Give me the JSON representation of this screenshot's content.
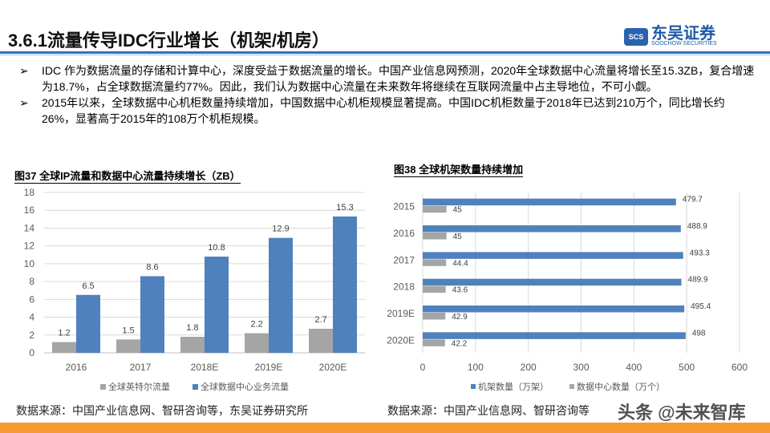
{
  "header": {
    "title": "3.6.1流量传导IDC行业增长（机架/机房）",
    "logo_cn": "东吴证券",
    "logo_en": "SOOCHOW SECURITIES",
    "logo_mark": "SCS"
  },
  "bullets": [
    "IDC 作为数据流量的存储和计算中心，深度受益于数据流量的增长。中国产业信息网预测，2020年全球数据中心流量将增长至15.3ZB，复合增速为18.7%，占全球数据流量约77%。因此，我们认为数据中心流量在未来数年将继续在互联网流量中占主导地位，不可小觑。",
    "2015年以来，全球数据中心机柜数量持续增加，中国数据中心机柜规模显著提高。中国IDC机柜数量于2018年已达到210万个，同比增长约26%，显著高于2015年的108万个机柜规模。"
  ],
  "bullet_icon": "arrow-right-icon",
  "colors": {
    "blue": "#4f81bd",
    "gray": "#a5a5a5",
    "accent": "#2e74b5",
    "footer": "#f79a33"
  },
  "chart_data": [
    {
      "type": "bar",
      "title": "图37 全球IP流量和数据中心流量持续增长（ZB）",
      "categories": [
        "2016",
        "2017",
        "2018E",
        "2019E",
        "2020E"
      ],
      "series": [
        {
          "name": "全球英特尔流量",
          "color": "#a5a5a5",
          "values": [
            1.2,
            1.5,
            1.8,
            2.2,
            2.7
          ]
        },
        {
          "name": "全球数据中心业务流量",
          "color": "#4f81bd",
          "values": [
            6.5,
            8.6,
            10.8,
            12.9,
            15.3
          ]
        }
      ],
      "ylim": [
        0,
        18
      ],
      "yticks": [
        0,
        2,
        4,
        6,
        8,
        10,
        12,
        14,
        16,
        18
      ],
      "grid": true,
      "legend": "bottom"
    },
    {
      "type": "bar",
      "orientation": "horizontal",
      "title": "图38 全球机架数量持续增加",
      "categories": [
        "2015",
        "2016",
        "2017",
        "2018",
        "2019E",
        "2020E"
      ],
      "series": [
        {
          "name": "机架数量（万架）",
          "color": "#4f81bd",
          "values": [
            479.7,
            488.9,
            493.3,
            489.9,
            495.4,
            498
          ]
        },
        {
          "name": "数据中心数量（万个）",
          "color": "#a5a5a5",
          "values": [
            45,
            45,
            44.4,
            43.6,
            42.9,
            42.2
          ]
        }
      ],
      "xlim": [
        0,
        600
      ],
      "xticks": [
        0,
        100,
        200,
        300,
        400,
        500,
        600
      ],
      "grid": true,
      "legend": "bottom"
    }
  ],
  "sources": {
    "left": "数据来源：中国产业信息网、智研咨询等，东吴证券研究所",
    "right": "数据来源：中国产业信息网、智研咨询等"
  },
  "watermark": "头条 @未来智库"
}
